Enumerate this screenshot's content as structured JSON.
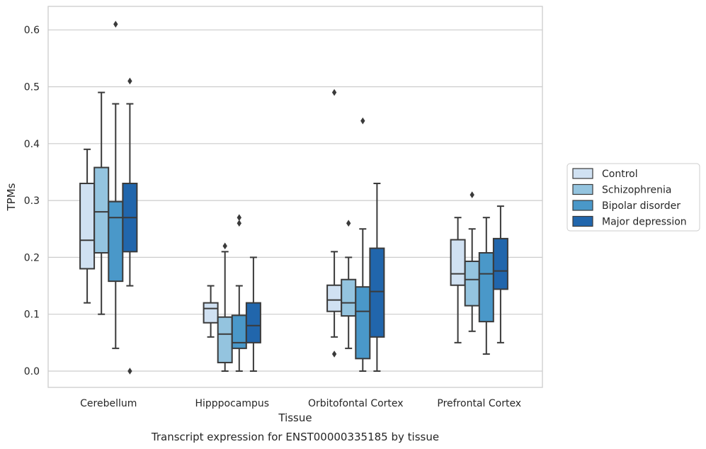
{
  "chart_data": {
    "type": "box",
    "xlabel": "Tissue",
    "ylabel": "TPMs",
    "caption": "Transcript expression for ENST00000335185 by tissue",
    "ylim": [
      -0.03,
      0.64
    ],
    "yticks": [
      0.0,
      0.1,
      0.2,
      0.3,
      0.4,
      0.5,
      0.6
    ],
    "ytick_labels": [
      "0.0",
      "0.1",
      "0.2",
      "0.3",
      "0.4",
      "0.5",
      "0.6"
    ],
    "grid": "horizontal",
    "legend_position": "right",
    "categories": [
      "Cerebellum",
      "Hipppocampus",
      "Orbitofontal Cortex",
      "Prefrontal Cortex"
    ],
    "series": [
      {
        "name": "Control",
        "color": "#d0e1f2",
        "boxes": [
          {
            "whisker_low": 0.12,
            "q1": 0.18,
            "median": 0.23,
            "q3": 0.33,
            "whisker_high": 0.39,
            "outliers": []
          },
          {
            "whisker_low": 0.06,
            "q1": 0.085,
            "median": 0.11,
            "q3": 0.12,
            "whisker_high": 0.15,
            "outliers": []
          },
          {
            "whisker_low": 0.06,
            "q1": 0.105,
            "median": 0.125,
            "q3": 0.151,
            "whisker_high": 0.21,
            "outliers": [
              0.03,
              0.49
            ]
          },
          {
            "whisker_low": 0.05,
            "q1": 0.151,
            "median": 0.171,
            "q3": 0.231,
            "whisker_high": 0.27,
            "outliers": []
          }
        ]
      },
      {
        "name": "Schizophrenia",
        "color": "#94c4df",
        "boxes": [
          {
            "whisker_low": 0.1,
            "q1": 0.208,
            "median": 0.28,
            "q3": 0.358,
            "whisker_high": 0.49,
            "outliers": []
          },
          {
            "whisker_low": 0.0,
            "q1": 0.015,
            "median": 0.065,
            "q3": 0.095,
            "whisker_high": 0.21,
            "outliers": [
              0.22
            ]
          },
          {
            "whisker_low": 0.04,
            "q1": 0.097,
            "median": 0.12,
            "q3": 0.161,
            "whisker_high": 0.2,
            "outliers": [
              0.26
            ]
          },
          {
            "whisker_low": 0.07,
            "q1": 0.115,
            "median": 0.161,
            "q3": 0.193,
            "whisker_high": 0.25,
            "outliers": [
              0.31
            ]
          }
        ]
      },
      {
        "name": "Bipolar disorder",
        "color": "#4a98c9",
        "boxes": [
          {
            "whisker_low": 0.04,
            "q1": 0.158,
            "median": 0.27,
            "q3": 0.298,
            "whisker_high": 0.47,
            "outliers": [
              0.61
            ]
          },
          {
            "whisker_low": 0.0,
            "q1": 0.04,
            "median": 0.05,
            "q3": 0.098,
            "whisker_high": 0.15,
            "outliers": [
              0.26,
              0.27
            ]
          },
          {
            "whisker_low": 0.0,
            "q1": 0.022,
            "median": 0.105,
            "q3": 0.148,
            "whisker_high": 0.25,
            "outliers": [
              0.44
            ]
          },
          {
            "whisker_low": 0.03,
            "q1": 0.087,
            "median": 0.171,
            "q3": 0.208,
            "whisker_high": 0.27,
            "outliers": []
          }
        ]
      },
      {
        "name": "Major depression",
        "color": "#2166ac",
        "boxes": [
          {
            "whisker_low": 0.15,
            "q1": 0.21,
            "median": 0.27,
            "q3": 0.33,
            "whisker_high": 0.47,
            "outliers": [
              0.0,
              0.51
            ]
          },
          {
            "whisker_low": 0.0,
            "q1": 0.05,
            "median": 0.08,
            "q3": 0.12,
            "whisker_high": 0.2,
            "outliers": []
          },
          {
            "whisker_low": 0.0,
            "q1": 0.06,
            "median": 0.14,
            "q3": 0.216,
            "whisker_high": 0.33,
            "outliers": []
          },
          {
            "whisker_low": 0.05,
            "q1": 0.144,
            "median": 0.176,
            "q3": 0.233,
            "whisker_high": 0.29,
            "outliers": []
          }
        ]
      }
    ]
  }
}
